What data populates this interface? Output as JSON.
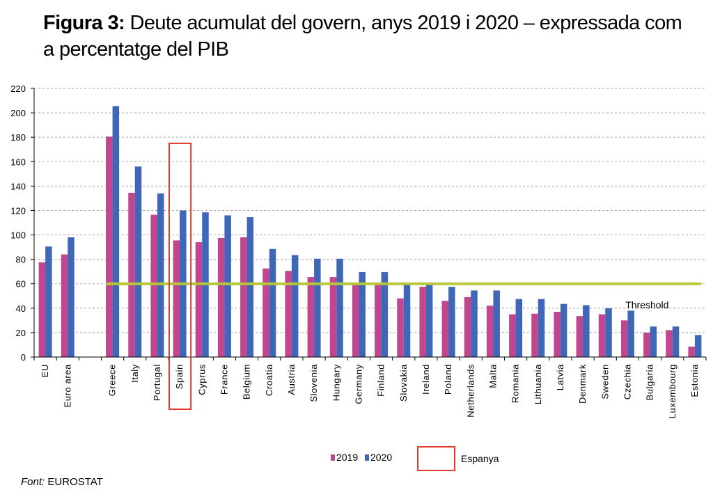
{
  "title": {
    "prefix": "Figura 3:",
    "text": "Deute acumulat del govern, anys 2019 i 2020 – expressada com a percentatge del PIB"
  },
  "source": {
    "label": "Font:",
    "value": "EUROSTAT"
  },
  "colors": {
    "s2019": "#c0478f",
    "s2020": "#3f66b7",
    "threshold": "#b7c73a",
    "highlight": "#e23b2e",
    "grid": "#a8a8a8"
  },
  "chart_data": {
    "type": "bar",
    "categories": [
      "EU",
      "Euro area",
      "",
      "Greece",
      "Italy",
      "Portugal",
      "Spain",
      "Cyprus",
      "France",
      "Belgium",
      "Croatia",
      "Austria",
      "Slovenia",
      "Hungary",
      "Germany",
      "Finland",
      "Slovakia",
      "Ireland",
      "Poland",
      "Netherlands",
      "Malta",
      "Romania",
      "Lithuania",
      "Latvia",
      "Denmark",
      "Sweden",
      "Czechia",
      "Bulgaria",
      "Luxembourg",
      "Estonia"
    ],
    "series": [
      {
        "name": "2019",
        "values": [
          77.5,
          84,
          null,
          180.5,
          134.5,
          116.5,
          95.5,
          94,
          97.5,
          98,
          72.5,
          70.5,
          65.5,
          65.5,
          59.5,
          59.5,
          48,
          57.5,
          46,
          49,
          42,
          35,
          35.5,
          37,
          33.5,
          35,
          30,
          20,
          22,
          8.5
        ]
      },
      {
        "name": "2020",
        "values": [
          90.5,
          98,
          null,
          205.5,
          156,
          134,
          120,
          118.5,
          116,
          114.5,
          88.5,
          83.5,
          80.5,
          80.5,
          69.5,
          69.5,
          60.5,
          59.5,
          57.5,
          54.5,
          54.5,
          47.5,
          47.5,
          43.5,
          42.5,
          40,
          38,
          25,
          25,
          18
        ]
      }
    ],
    "yticks": [
      0,
      20,
      40,
      60,
      80,
      100,
      120,
      140,
      160,
      180,
      200,
      220
    ],
    "ylim": [
      0,
      220
    ],
    "grid": true,
    "threshold": {
      "value": 60,
      "label": "Threshold"
    },
    "highlight": {
      "category": "Spain",
      "label": "Espanya"
    },
    "legend": {
      "position": "bottom"
    }
  }
}
